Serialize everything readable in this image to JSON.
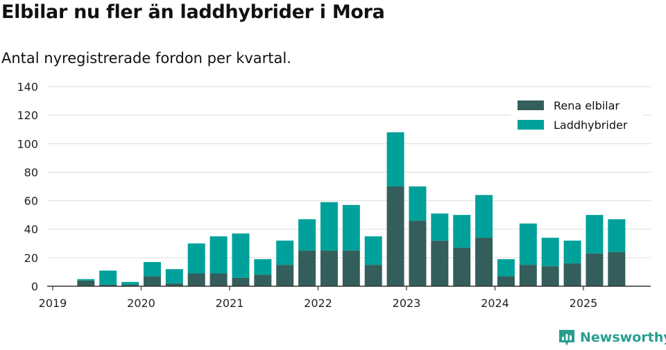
{
  "title": "Elbilar nu fler än laddhybrider i Mora",
  "subtitle": "Antal nyregistrerade fordon per kvartal.",
  "brand": "Newsworthy",
  "colors": {
    "rena_elbilar": "#345e5b",
    "laddhybrider": "#00a19a",
    "grid": "#dddddd",
    "axis": "#333333",
    "brand": "#2a9d8f"
  },
  "chart_data": {
    "type": "bar",
    "stacked": true,
    "x_start": "2019-01-01",
    "x_ticks": [
      "2019",
      "2020",
      "2021",
      "2022",
      "2023",
      "2024",
      "2025"
    ],
    "y_ticks": [
      0,
      20,
      40,
      60,
      80,
      100,
      120,
      140
    ],
    "ylim": [
      0,
      140
    ],
    "grid": true,
    "legend_position": "top-right",
    "categories": [
      "2019 Q2",
      "2019 Q3",
      "2019 Q4",
      "2020 Q1",
      "2020 Q2",
      "2020 Q3",
      "2020 Q4",
      "2021 Q1",
      "2021 Q2",
      "2021 Q3",
      "2021 Q4",
      "2022 Q1",
      "2022 Q2",
      "2022 Q3",
      "2022 Q4",
      "2023 Q1",
      "2023 Q2",
      "2023 Q3",
      "2023 Q4",
      "2024 Q1",
      "2024 Q2",
      "2024 Q3",
      "2024 Q4",
      "2025 Q1",
      "2025 Q2"
    ],
    "series": [
      {
        "name": "Rena elbilar",
        "values": [
          4,
          1,
          1,
          7,
          2,
          9,
          9,
          6,
          8,
          15,
          25,
          25,
          25,
          15,
          70,
          46,
          32,
          27,
          34,
          7,
          15,
          14,
          16,
          23,
          24
        ]
      },
      {
        "name": "Laddhybrider",
        "values": [
          1,
          10,
          2,
          10,
          10,
          21,
          26,
          31,
          11,
          17,
          22,
          34,
          32,
          20,
          38,
          24,
          19,
          23,
          30,
          12,
          29,
          20,
          16,
          27,
          23
        ]
      }
    ]
  }
}
